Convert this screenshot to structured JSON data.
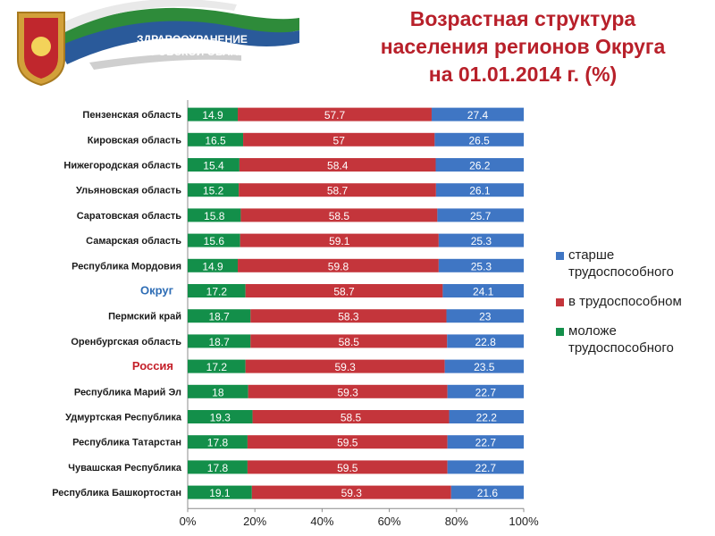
{
  "logo": {
    "text_line1": "ЗДРАВООХРАНЕНИЕ",
    "text_line2": "КИРОВСКОЙ ОБЛАСТИ",
    "colors": {
      "green": "#2e8b3a",
      "blue": "#2a5a9a",
      "red": "#c0272d",
      "gold": "#d2a03a"
    }
  },
  "title": {
    "line1": "Возрастная структура",
    "line2": "населения регионов Округа",
    "line3": "на 01.01.2014 г. (%)",
    "color": "#b8202a"
  },
  "legend": {
    "items": [
      {
        "label_lines": [
          "старше",
          "трудоспособного"
        ],
        "color": "#3f76c4"
      },
      {
        "label_lines": [
          "в трудоспособном"
        ],
        "color": "#c4353b"
      },
      {
        "label_lines": [
          "моложе",
          "трудоспособного"
        ],
        "color": "#138f4a"
      }
    ]
  },
  "chart_data": {
    "type": "bar",
    "orientation": "horizontal",
    "stacked": "percent",
    "categories": [
      "Пензенская область",
      "Кировская область",
      "Нижегородская область",
      "Ульяновская область",
      "Саратовская область",
      "Самарская область",
      "Республика Мордовия",
      "Округ",
      "Пермский край",
      "Оренбургская область",
      "Россия",
      "Республика Марий Эл",
      "Удмуртская Республика",
      "Республика Татарстан",
      "Чувашская Республика",
      "Республика Башкортостан"
    ],
    "highlighted_categories": [
      "Округ",
      "Россия"
    ],
    "highlight_colors": {
      "Округ": "#2e6db5",
      "Россия": "#c4202a"
    },
    "series": [
      {
        "name": "моложе трудоспособного",
        "color": "#138f4a",
        "values": [
          14.9,
          16.5,
          15.4,
          15.2,
          15.8,
          15.6,
          14.9,
          17.2,
          18.7,
          18.7,
          17.2,
          18,
          19.3,
          17.8,
          17.8,
          19.1
        ]
      },
      {
        "name": "в трудоспособном",
        "color": "#c4353b",
        "values": [
          57.7,
          57,
          58.4,
          58.7,
          58.5,
          59.1,
          59.8,
          58.7,
          58.3,
          58.5,
          59.3,
          59.3,
          58.5,
          59.5,
          59.5,
          59.3
        ]
      },
      {
        "name": "старше трудоспособного",
        "color": "#3f76c4",
        "values": [
          27.4,
          26.5,
          26.2,
          26.1,
          25.7,
          25.3,
          25.3,
          24.1,
          23,
          22.8,
          23.5,
          22.7,
          22.2,
          22.7,
          22.7,
          21.6
        ]
      }
    ],
    "x_ticks": [
      "0%",
      "20%",
      "40%",
      "60%",
      "80%",
      "100%"
    ],
    "xlim": [
      0,
      100
    ],
    "grid": false,
    "legend_position": "right"
  }
}
